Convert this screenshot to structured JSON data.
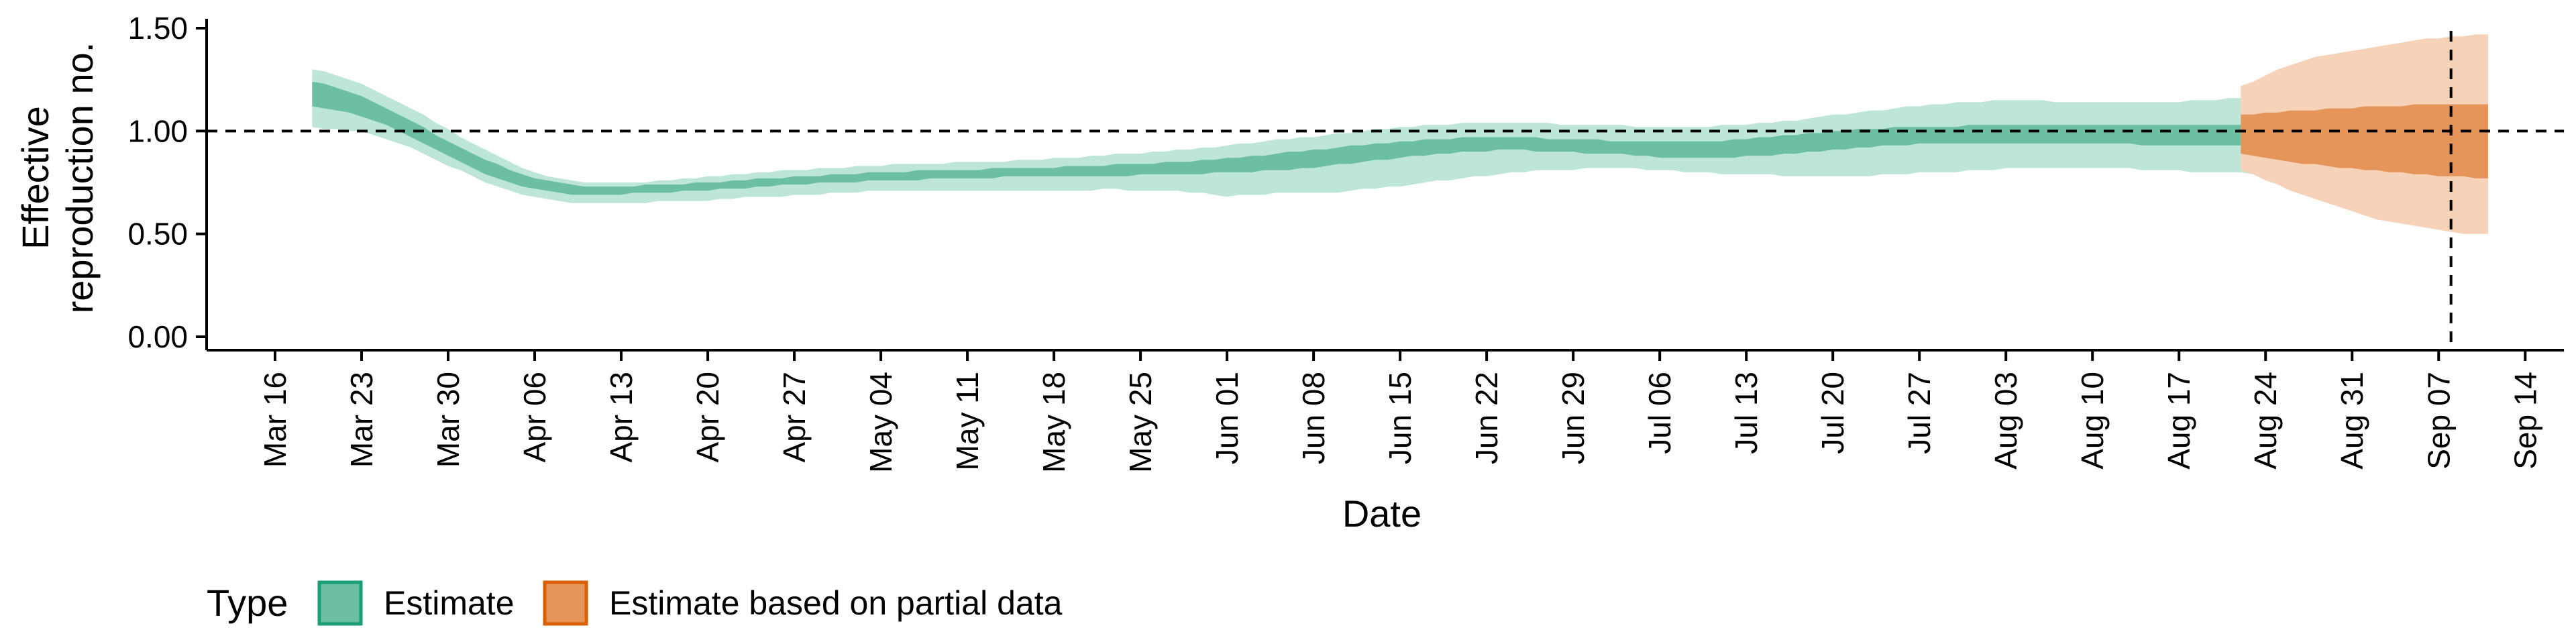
{
  "chart_data": {
    "type": "area",
    "xlabel": "Date",
    "ylabel_lines": [
      "Effective",
      "reproduction no."
    ],
    "y_ticks": [
      "0.00",
      "0.50",
      "1.00",
      "1.50"
    ],
    "ylim": [
      0,
      1.5
    ],
    "x_ticks": [
      "Mar 16",
      "Mar 23",
      "Mar 30",
      "Apr 06",
      "Apr 13",
      "Apr 20",
      "Apr 27",
      "May 04",
      "May 11",
      "May 18",
      "May 25",
      "Jun 01",
      "Jun 08",
      "Jun 15",
      "Jun 22",
      "Jun 29",
      "Jul 06",
      "Jul 13",
      "Jul 20",
      "Jul 27",
      "Aug 03",
      "Aug 10",
      "Aug 17",
      "Aug 24",
      "Aug 31",
      "Sep 07",
      "Sep 14"
    ],
    "reference_line_y": 1.0,
    "reference_line_x": "Sep 08",
    "legend": {
      "title": "Type",
      "position": "bottom-left",
      "items": [
        "Estimate",
        "Estimate based on partial data"
      ]
    },
    "colors": {
      "estimate_outer": "#bde5d8",
      "estimate_inner": "#6cbfa3",
      "estimate_border": "#1b9e77",
      "partial_outer": "#f6d3b8",
      "partial_inner": "#e6955a",
      "partial_border": "#d95f02"
    },
    "series": [
      {
        "name": "Estimate",
        "start_date": "Mar 19",
        "x_step_days": 1,
        "lower90": [
          1.02,
          1.01,
          1.01,
          1.0,
          1.0,
          0.98,
          0.96,
          0.94,
          0.92,
          0.89,
          0.86,
          0.83,
          0.81,
          0.78,
          0.75,
          0.73,
          0.71,
          0.69,
          0.68,
          0.67,
          0.66,
          0.65,
          0.65,
          0.65,
          0.65,
          0.65,
          0.65,
          0.65,
          0.66,
          0.66,
          0.66,
          0.66,
          0.66,
          0.67,
          0.67,
          0.68,
          0.68,
          0.68,
          0.68,
          0.69,
          0.69,
          0.69,
          0.7,
          0.7,
          0.7,
          0.71,
          0.71,
          0.71,
          0.71,
          0.71,
          0.71,
          0.71,
          0.71,
          0.71,
          0.71,
          0.71,
          0.71,
          0.71,
          0.71,
          0.71,
          0.71,
          0.71,
          0.71,
          0.71,
          0.72,
          0.72,
          0.71,
          0.71,
          0.71,
          0.71,
          0.71,
          0.7,
          0.7,
          0.69,
          0.68,
          0.69,
          0.69,
          0.69,
          0.7,
          0.7,
          0.7,
          0.7,
          0.7,
          0.7,
          0.71,
          0.72,
          0.72,
          0.73,
          0.73,
          0.74,
          0.75,
          0.76,
          0.76,
          0.77,
          0.78,
          0.78,
          0.79,
          0.8,
          0.8,
          0.81,
          0.81,
          0.81,
          0.81,
          0.82,
          0.82,
          0.82,
          0.82,
          0.82,
          0.81,
          0.81,
          0.81,
          0.8,
          0.8,
          0.8,
          0.79,
          0.79,
          0.79,
          0.79,
          0.79,
          0.78,
          0.78,
          0.78,
          0.78,
          0.78,
          0.78,
          0.78,
          0.78,
          0.79,
          0.79,
          0.79,
          0.8,
          0.8,
          0.8,
          0.8,
          0.81,
          0.81,
          0.81,
          0.82,
          0.82,
          0.82,
          0.82,
          0.82,
          0.82,
          0.82,
          0.82,
          0.82,
          0.82,
          0.82,
          0.81,
          0.81,
          0.81,
          0.81,
          0.8,
          0.8,
          0.8,
          0.8,
          0.8,
          0.79,
          0.79,
          0.78,
          0.78,
          0.77,
          0.77,
          0.76,
          0.75,
          0.74,
          0.73,
          0.71
        ],
        "upper90": [
          1.3,
          1.29,
          1.27,
          1.25,
          1.23,
          1.2,
          1.17,
          1.14,
          1.11,
          1.08,
          1.04,
          1.01,
          0.97,
          0.94,
          0.91,
          0.88,
          0.85,
          0.82,
          0.8,
          0.78,
          0.77,
          0.76,
          0.75,
          0.75,
          0.75,
          0.75,
          0.75,
          0.75,
          0.76,
          0.76,
          0.77,
          0.77,
          0.78,
          0.78,
          0.79,
          0.79,
          0.8,
          0.8,
          0.81,
          0.81,
          0.81,
          0.82,
          0.82,
          0.82,
          0.83,
          0.83,
          0.83,
          0.84,
          0.84,
          0.84,
          0.84,
          0.84,
          0.85,
          0.85,
          0.85,
          0.85,
          0.85,
          0.86,
          0.86,
          0.86,
          0.87,
          0.87,
          0.87,
          0.88,
          0.88,
          0.89,
          0.89,
          0.89,
          0.9,
          0.9,
          0.91,
          0.91,
          0.92,
          0.92,
          0.93,
          0.94,
          0.94,
          0.95,
          0.96,
          0.96,
          0.97,
          0.97,
          0.98,
          0.99,
          0.99,
          1.0,
          1.01,
          1.01,
          1.02,
          1.02,
          1.03,
          1.03,
          1.03,
          1.04,
          1.04,
          1.04,
          1.04,
          1.04,
          1.04,
          1.04,
          1.04,
          1.03,
          1.03,
          1.03,
          1.03,
          1.03,
          1.03,
          1.02,
          1.02,
          1.02,
          1.02,
          1.02,
          1.02,
          1.02,
          1.03,
          1.03,
          1.03,
          1.04,
          1.04,
          1.05,
          1.05,
          1.06,
          1.07,
          1.08,
          1.08,
          1.09,
          1.1,
          1.1,
          1.11,
          1.12,
          1.12,
          1.13,
          1.13,
          1.14,
          1.14,
          1.14,
          1.15,
          1.15,
          1.15,
          1.15,
          1.15,
          1.14,
          1.14,
          1.14,
          1.14,
          1.14,
          1.14,
          1.14,
          1.14,
          1.14,
          1.14,
          1.14,
          1.15,
          1.15,
          1.15,
          1.16,
          1.16,
          1.17,
          1.17,
          1.18,
          1.18,
          1.19,
          1.19,
          1.2,
          1.2,
          1.21,
          1.21,
          1.22
        ],
        "lower50": [
          1.12,
          1.11,
          1.1,
          1.09,
          1.07,
          1.05,
          1.03,
          1.0,
          0.97,
          0.94,
          0.91,
          0.88,
          0.85,
          0.82,
          0.79,
          0.77,
          0.75,
          0.73,
          0.72,
          0.71,
          0.7,
          0.69,
          0.69,
          0.69,
          0.69,
          0.69,
          0.7,
          0.7,
          0.7,
          0.7,
          0.71,
          0.71,
          0.71,
          0.72,
          0.72,
          0.72,
          0.73,
          0.73,
          0.74,
          0.74,
          0.74,
          0.75,
          0.75,
          0.75,
          0.75,
          0.76,
          0.76,
          0.76,
          0.76,
          0.76,
          0.77,
          0.77,
          0.77,
          0.77,
          0.77,
          0.77,
          0.78,
          0.78,
          0.78,
          0.78,
          0.78,
          0.78,
          0.78,
          0.78,
          0.78,
          0.78,
          0.78,
          0.79,
          0.79,
          0.79,
          0.79,
          0.79,
          0.79,
          0.8,
          0.8,
          0.8,
          0.8,
          0.81,
          0.81,
          0.81,
          0.82,
          0.82,
          0.83,
          0.84,
          0.84,
          0.85,
          0.86,
          0.86,
          0.87,
          0.88,
          0.88,
          0.89,
          0.89,
          0.9,
          0.9,
          0.9,
          0.91,
          0.91,
          0.91,
          0.9,
          0.9,
          0.9,
          0.9,
          0.89,
          0.89,
          0.89,
          0.89,
          0.88,
          0.88,
          0.87,
          0.87,
          0.87,
          0.87,
          0.87,
          0.87,
          0.87,
          0.88,
          0.88,
          0.88,
          0.89,
          0.89,
          0.9,
          0.9,
          0.91,
          0.91,
          0.92,
          0.92,
          0.93,
          0.93,
          0.93,
          0.94,
          0.94,
          0.94,
          0.94,
          0.94,
          0.94,
          0.94,
          0.94,
          0.94,
          0.94,
          0.94,
          0.94,
          0.94,
          0.94,
          0.94,
          0.94,
          0.94,
          0.94,
          0.93,
          0.93,
          0.93,
          0.93,
          0.93,
          0.93,
          0.93,
          0.93,
          0.93,
          0.93,
          0.93,
          0.93,
          0.93,
          0.93,
          0.93,
          0.93,
          0.93,
          0.93
        ],
        "upper50": [
          1.24,
          1.23,
          1.21,
          1.19,
          1.17,
          1.14,
          1.11,
          1.08,
          1.05,
          1.02,
          0.98,
          0.95,
          0.92,
          0.89,
          0.86,
          0.84,
          0.81,
          0.79,
          0.77,
          0.76,
          0.75,
          0.74,
          0.73,
          0.73,
          0.73,
          0.73,
          0.73,
          0.74,
          0.74,
          0.74,
          0.74,
          0.75,
          0.75,
          0.75,
          0.76,
          0.76,
          0.77,
          0.77,
          0.77,
          0.78,
          0.78,
          0.78,
          0.79,
          0.79,
          0.79,
          0.8,
          0.8,
          0.8,
          0.8,
          0.81,
          0.81,
          0.81,
          0.81,
          0.81,
          0.81,
          0.82,
          0.82,
          0.82,
          0.82,
          0.82,
          0.82,
          0.83,
          0.83,
          0.83,
          0.83,
          0.84,
          0.84,
          0.84,
          0.84,
          0.85,
          0.85,
          0.85,
          0.86,
          0.86,
          0.87,
          0.87,
          0.88,
          0.88,
          0.89,
          0.9,
          0.9,
          0.91,
          0.91,
          0.92,
          0.93,
          0.93,
          0.94,
          0.94,
          0.95,
          0.95,
          0.96,
          0.96,
          0.96,
          0.97,
          0.97,
          0.97,
          0.97,
          0.97,
          0.97,
          0.97,
          0.96,
          0.96,
          0.96,
          0.96,
          0.96,
          0.95,
          0.95,
          0.95,
          0.95,
          0.95,
          0.95,
          0.95,
          0.95,
          0.95,
          0.95,
          0.96,
          0.96,
          0.97,
          0.97,
          0.98,
          0.98,
          0.99,
          0.99,
          1.0,
          1.0,
          1.01,
          1.01,
          1.01,
          1.02,
          1.02,
          1.02,
          1.02,
          1.02,
          1.02,
          1.03,
          1.03,
          1.03,
          1.03,
          1.03,
          1.03,
          1.03,
          1.03,
          1.03,
          1.03,
          1.03,
          1.03,
          1.03,
          1.03,
          1.03,
          1.03,
          1.03,
          1.03,
          1.03,
          1.03,
          1.03,
          1.03,
          1.03,
          1.03,
          1.03,
          1.03,
          1.03,
          1.03,
          1.03,
          1.03,
          1.03,
          1.03
        ]
      },
      {
        "name": "Estimate based on partial data",
        "start_date": "Aug 22",
        "x_step_days": 1,
        "lower90": [
          0.81,
          0.79,
          0.76,
          0.74,
          0.71,
          0.69,
          0.67,
          0.65,
          0.63,
          0.61,
          0.59,
          0.57,
          0.56,
          0.55,
          0.54,
          0.53,
          0.52,
          0.51,
          0.5,
          0.5,
          0.5
        ],
        "upper90": [
          1.22,
          1.24,
          1.27,
          1.3,
          1.32,
          1.34,
          1.36,
          1.37,
          1.38,
          1.39,
          1.4,
          1.41,
          1.42,
          1.43,
          1.44,
          1.45,
          1.45,
          1.46,
          1.46,
          1.47,
          1.47
        ],
        "lower50": [
          0.89,
          0.88,
          0.87,
          0.86,
          0.85,
          0.84,
          0.84,
          0.83,
          0.82,
          0.82,
          0.81,
          0.81,
          0.8,
          0.8,
          0.79,
          0.79,
          0.78,
          0.78,
          0.78,
          0.77,
          0.77
        ],
        "upper50": [
          1.08,
          1.08,
          1.09,
          1.09,
          1.1,
          1.1,
          1.1,
          1.11,
          1.11,
          1.11,
          1.12,
          1.12,
          1.12,
          1.12,
          1.13,
          1.13,
          1.13,
          1.13,
          1.13,
          1.13,
          1.13
        ]
      }
    ]
  }
}
